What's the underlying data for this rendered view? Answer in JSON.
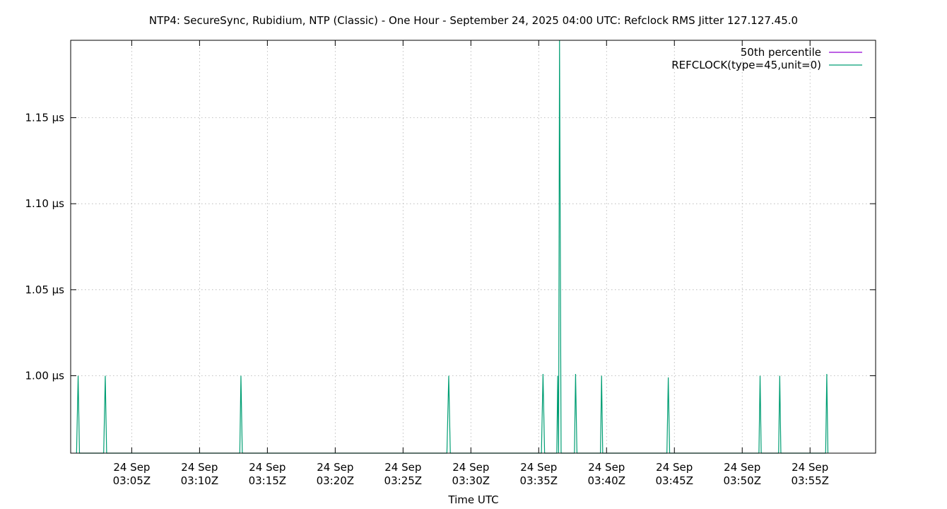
{
  "chart_data": {
    "type": "line",
    "title": "NTP4: SecureSync, Rubidium, NTP (Classic) - One Hour - September 24, 2025 04:00 UTC: Refclock RMS Jitter 127.127.45.0",
    "xlabel": "Time UTC",
    "ylabel": "",
    "y_unit": "µs",
    "ylim": [
      0.955,
      1.195
    ],
    "xlim": [
      "2025-09-24T03:00:30Z",
      "2025-09-24T03:59:50Z"
    ],
    "grid": true,
    "legend_position": "top-right",
    "x_ticks": [
      {
        "line1": "24 Sep",
        "line2": "03:05Z",
        "t": "2025-09-24T03:05:00Z"
      },
      {
        "line1": "24 Sep",
        "line2": "03:10Z",
        "t": "2025-09-24T03:10:00Z"
      },
      {
        "line1": "24 Sep",
        "line2": "03:15Z",
        "t": "2025-09-24T03:15:00Z"
      },
      {
        "line1": "24 Sep",
        "line2": "03:20Z",
        "t": "2025-09-24T03:20:00Z"
      },
      {
        "line1": "24 Sep",
        "line2": "03:25Z",
        "t": "2025-09-24T03:25:00Z"
      },
      {
        "line1": "24 Sep",
        "line2": "03:30Z",
        "t": "2025-09-24T03:30:00Z"
      },
      {
        "line1": "24 Sep",
        "line2": "03:35Z",
        "t": "2025-09-24T03:35:00Z"
      },
      {
        "line1": "24 Sep",
        "line2": "03:40Z",
        "t": "2025-09-24T03:40:00Z"
      },
      {
        "line1": "24 Sep",
        "line2": "03:45Z",
        "t": "2025-09-24T03:45:00Z"
      },
      {
        "line1": "24 Sep",
        "line2": "03:50Z",
        "t": "2025-09-24T03:50:00Z"
      },
      {
        "line1": "24 Sep",
        "line2": "03:55Z",
        "t": "2025-09-24T03:55:00Z"
      }
    ],
    "y_ticks": [
      {
        "value": 1.0,
        "label": "1.00 µs"
      },
      {
        "value": 1.05,
        "label": "1.05 µs"
      },
      {
        "value": 1.1,
        "label": "1.10 µs"
      },
      {
        "value": 1.15,
        "label": "1.15 µs"
      }
    ],
    "series": [
      {
        "name": "50th percentile",
        "color": "#9400d3",
        "points": []
      },
      {
        "name": "REFCLOCK(type=45,unit=0)",
        "color": "#009e73",
        "points": [
          {
            "t": "2025-09-24T03:00:56Z",
            "v": 0.955
          },
          {
            "t": "2025-09-24T03:01:03Z",
            "v": 1.0
          },
          {
            "t": "2025-09-24T03:01:09Z",
            "v": 0.955
          },
          {
            "t": "2025-09-24T03:02:56Z",
            "v": 0.955
          },
          {
            "t": "2025-09-24T03:03:03Z",
            "v": 1.0
          },
          {
            "t": "2025-09-24T03:03:09Z",
            "v": 0.955
          },
          {
            "t": "2025-09-24T03:12:58Z",
            "v": 0.955
          },
          {
            "t": "2025-09-24T03:13:03Z",
            "v": 1.0
          },
          {
            "t": "2025-09-24T03:13:09Z",
            "v": 0.955
          },
          {
            "t": "2025-09-24T03:28:14Z",
            "v": 0.955
          },
          {
            "t": "2025-09-24T03:28:22Z",
            "v": 1.0
          },
          {
            "t": "2025-09-24T03:28:29Z",
            "v": 0.955
          },
          {
            "t": "2025-09-24T03:35:12Z",
            "v": 0.955
          },
          {
            "t": "2025-09-24T03:35:19Z",
            "v": 1.001
          },
          {
            "t": "2025-09-24T03:35:26Z",
            "v": 0.955
          },
          {
            "t": "2025-09-24T03:36:20Z",
            "v": 0.955
          },
          {
            "t": "2025-09-24T03:36:24Z",
            "v": 1.0
          },
          {
            "t": "2025-09-24T03:36:28Z",
            "v": 0.955
          },
          {
            "t": "2025-09-24T03:36:32Z",
            "v": 1.195
          },
          {
            "t": "2025-09-24T03:36:39Z",
            "v": 0.955
          },
          {
            "t": "2025-09-24T03:37:38Z",
            "v": 0.955
          },
          {
            "t": "2025-09-24T03:37:43Z",
            "v": 1.001
          },
          {
            "t": "2025-09-24T03:37:49Z",
            "v": 0.955
          },
          {
            "t": "2025-09-24T03:39:33Z",
            "v": 0.955
          },
          {
            "t": "2025-09-24T03:39:38Z",
            "v": 1.0
          },
          {
            "t": "2025-09-24T03:39:43Z",
            "v": 0.955
          },
          {
            "t": "2025-09-24T03:44:27Z",
            "v": 0.955
          },
          {
            "t": "2025-09-24T03:44:33Z",
            "v": 0.999
          },
          {
            "t": "2025-09-24T03:44:39Z",
            "v": 0.955
          },
          {
            "t": "2025-09-24T03:51:14Z",
            "v": 0.955
          },
          {
            "t": "2025-09-24T03:51:19Z",
            "v": 1.0
          },
          {
            "t": "2025-09-24T03:51:24Z",
            "v": 0.955
          },
          {
            "t": "2025-09-24T03:52:41Z",
            "v": 0.955
          },
          {
            "t": "2025-09-24T03:52:46Z",
            "v": 1.0
          },
          {
            "t": "2025-09-24T03:52:51Z",
            "v": 0.955
          },
          {
            "t": "2025-09-24T03:56:09Z",
            "v": 0.955
          },
          {
            "t": "2025-09-24T03:56:14Z",
            "v": 1.001
          },
          {
            "t": "2025-09-24T03:56:19Z",
            "v": 0.955
          }
        ]
      }
    ]
  }
}
